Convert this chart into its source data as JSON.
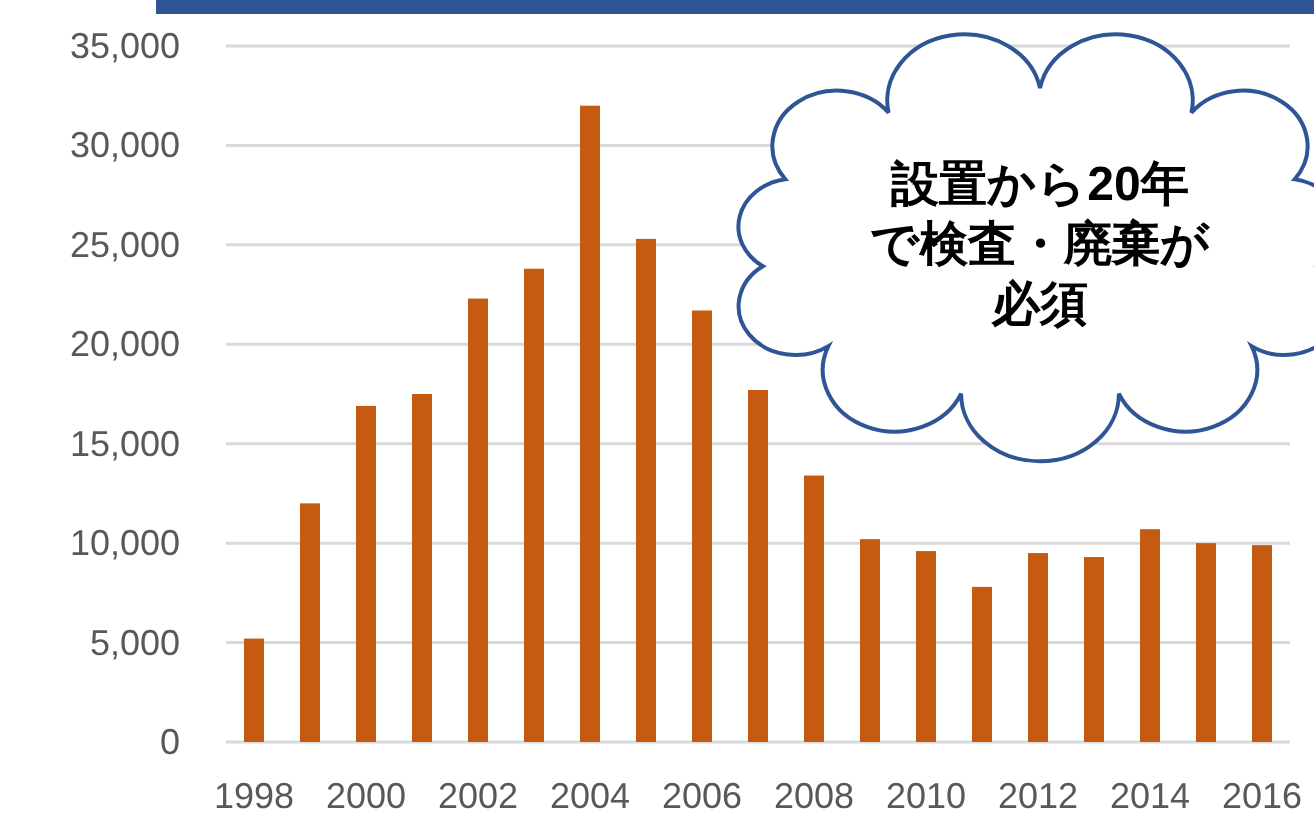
{
  "chart_data": {
    "type": "bar",
    "categories": [
      "1998",
      null,
      "2000",
      null,
      "2002",
      null,
      "2004",
      null,
      "2006",
      null,
      "2008",
      null,
      "2010",
      null,
      "2012",
      null,
      "2014",
      null,
      "2016"
    ],
    "values": [
      5200,
      12000,
      16900,
      17500,
      22300,
      23800,
      32000,
      25300,
      21700,
      17700,
      13400,
      10200,
      9600,
      7800,
      9500,
      9300,
      10700,
      10000,
      9900
    ],
    "color": "#c55a11",
    "ylim": [
      0,
      35000
    ],
    "yticks": [
      {
        "value": 0,
        "label": "0"
      },
      {
        "value": 5000,
        "label": "5,000"
      },
      {
        "value": 10000,
        "label": "10,000"
      },
      {
        "value": 15000,
        "label": "15,000"
      },
      {
        "value": 20000,
        "label": "20,000"
      },
      {
        "value": 25000,
        "label": "25,000"
      },
      {
        "value": 30000,
        "label": "30,000"
      },
      {
        "value": 35000,
        "label": "35,000"
      }
    ],
    "grid": "y",
    "annotations": [
      "設置から20年",
      "で検査・廃棄が",
      "必須"
    ]
  }
}
